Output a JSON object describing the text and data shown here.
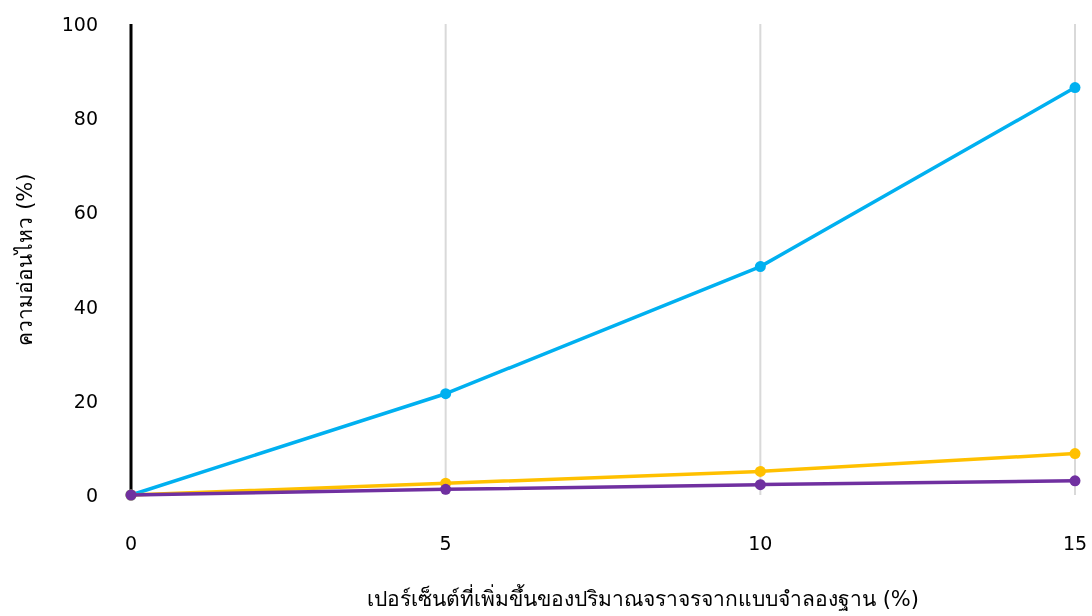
{
  "chart_data": {
    "type": "line",
    "xlabel": "เปอร์เซ็นต์ที่เพิ่มขึ้นของปริมาณจราจรจากแบบจำลองฐาน (%)",
    "ylabel": "ความอ่อนไหว (%)",
    "x": [
      0,
      5,
      10,
      15
    ],
    "series": [
      {
        "color": "#00b0f0",
        "values": [
          0,
          21.5,
          48.5,
          86.5
        ]
      },
      {
        "color": "#ffc000",
        "values": [
          0,
          2.5,
          5,
          8.8
        ]
      },
      {
        "color": "#7030a0",
        "values": [
          0,
          1.2,
          2.2,
          3
        ]
      }
    ],
    "xlim": [
      0,
      15
    ],
    "xticks": [
      0,
      5,
      10,
      15
    ],
    "ylim": [
      0,
      100
    ],
    "yticks": [
      0,
      20,
      40,
      60,
      80,
      100
    ],
    "grid": "x",
    "marker": "circle",
    "line_style": "solid"
  }
}
